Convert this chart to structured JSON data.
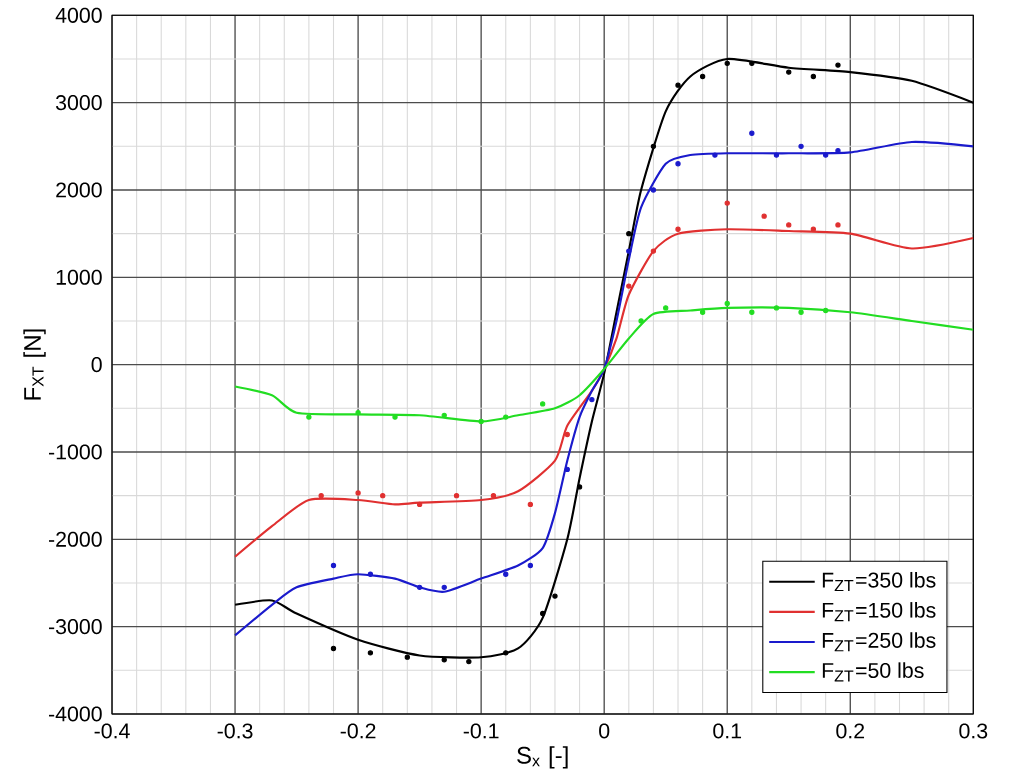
{
  "chart_data": {
    "type": "line",
    "xlabel": "S$_{x}$ [-]",
    "ylabel": "F$_{XT}$ [N]",
    "xlim": [
      -0.4,
      0.3
    ],
    "ylim": [
      -4000,
      4000
    ],
    "xticks": [
      -0.4,
      -0.3,
      -0.2,
      -0.1,
      0,
      0.1,
      0.2,
      0.3
    ],
    "yticks": [
      -4000,
      -3000,
      -2000,
      -1000,
      0,
      1000,
      2000,
      3000,
      4000
    ],
    "grid": true,
    "legend": "bottom right",
    "series": [
      {
        "name": "F$_{ZT}$=350 lbs",
        "color": "#000000",
        "x": [
          -0.3,
          -0.27,
          -0.25,
          -0.2,
          -0.15,
          -0.1,
          -0.07,
          -0.05,
          -0.03,
          -0.02,
          -0.01,
          0,
          0.01,
          0.02,
          0.03,
          0.05,
          0.07,
          0.1,
          0.15,
          0.2,
          0.25,
          0.3
        ],
        "values": [
          -2750,
          -2700,
          -2850,
          -3150,
          -3330,
          -3350,
          -3250,
          -2900,
          -2000,
          -1300,
          -650,
          -100,
          600,
          1300,
          2000,
          2900,
          3300,
          3500,
          3400,
          3350,
          3250,
          3000
        ]
      },
      {
        "name": "F$_{ZT}$=150 lbs",
        "color": "#e03030",
        "x": [
          -0.3,
          -0.27,
          -0.24,
          -0.2,
          -0.17,
          -0.15,
          -0.1,
          -0.07,
          -0.04,
          -0.03,
          -0.01,
          0,
          0.01,
          0.02,
          0.04,
          0.06,
          0.1,
          0.15,
          0.2,
          0.25,
          0.3
        ],
        "values": [
          -2200,
          -1850,
          -1550,
          -1550,
          -1600,
          -1580,
          -1550,
          -1450,
          -1100,
          -700,
          -300,
          -50,
          300,
          800,
          1300,
          1500,
          1550,
          1530,
          1500,
          1330,
          1450
        ]
      },
      {
        "name": "F$_{ZT}$=250 lbs",
        "color": "#1a1acc",
        "x": [
          -0.3,
          -0.27,
          -0.25,
          -0.22,
          -0.2,
          -0.17,
          -0.15,
          -0.13,
          -0.1,
          -0.07,
          -0.05,
          -0.04,
          -0.03,
          -0.02,
          -0.01,
          0,
          0.01,
          0.02,
          0.03,
          0.05,
          0.07,
          0.1,
          0.15,
          0.2,
          0.25,
          0.3
        ],
        "values": [
          -3100,
          -2750,
          -2550,
          -2450,
          -2400,
          -2450,
          -2550,
          -2600,
          -2450,
          -2300,
          -2100,
          -1700,
          -1100,
          -600,
          -300,
          -50,
          500,
          1200,
          1800,
          2300,
          2400,
          2420,
          2420,
          2430,
          2550,
          2500
        ]
      },
      {
        "name": "F$_{ZT}$=50 lbs",
        "color": "#22dd22",
        "x": [
          -0.3,
          -0.27,
          -0.25,
          -0.2,
          -0.15,
          -0.1,
          -0.07,
          -0.04,
          -0.02,
          0,
          0.02,
          0.04,
          0.07,
          0.1,
          0.15,
          0.2,
          0.25,
          0.3
        ],
        "values": [
          -250,
          -350,
          -550,
          -570,
          -580,
          -650,
          -580,
          -500,
          -350,
          -50,
          300,
          580,
          620,
          650,
          650,
          600,
          500,
          400
        ]
      },
      {
        "type": "scatter",
        "marker": "circle",
        "color": "#000000",
        "x": [
          -0.22,
          -0.19,
          -0.16,
          -0.13,
          -0.11,
          -0.08,
          -0.05,
          -0.04,
          -0.02,
          0.02,
          0.04,
          0.06,
          0.08,
          0.1,
          0.12,
          0.15,
          0.17,
          0.19
        ],
        "values": [
          -3250,
          -3300,
          -3350,
          -3380,
          -3400,
          -3300,
          -2850,
          -2650,
          -1400,
          1500,
          2500,
          3200,
          3300,
          3450,
          3450,
          3350,
          3300,
          3430
        ]
      },
      {
        "type": "scatter",
        "marker": "circle",
        "color": "#e03030",
        "x": [
          -0.23,
          -0.2,
          -0.18,
          -0.15,
          -0.12,
          -0.09,
          -0.06,
          -0.03,
          0.02,
          0.04,
          0.06,
          0.1,
          0.13,
          0.15,
          0.17,
          0.19
        ],
        "values": [
          -1500,
          -1470,
          -1500,
          -1600,
          -1500,
          -1500,
          -1600,
          -800,
          900,
          1300,
          1550,
          1850,
          1700,
          1600,
          1550,
          1600
        ]
      },
      {
        "type": "scatter",
        "marker": "circle",
        "color": "#1a1acc",
        "x": [
          -0.22,
          -0.19,
          -0.15,
          -0.13,
          -0.08,
          -0.06,
          -0.03,
          -0.01,
          0.02,
          0.04,
          0.06,
          0.09,
          0.12,
          0.14,
          0.16,
          0.18,
          0.19
        ],
        "values": [
          -2300,
          -2400,
          -2550,
          -2550,
          -2400,
          -2300,
          -1200,
          -400,
          1300,
          2000,
          2300,
          2400,
          2650,
          2400,
          2500,
          2400,
          2450
        ]
      },
      {
        "type": "scatter",
        "marker": "circle",
        "color": "#22dd22",
        "x": [
          -0.24,
          -0.2,
          -0.17,
          -0.13,
          -0.1,
          -0.08,
          -0.05,
          0.03,
          0.05,
          0.08,
          0.1,
          0.12,
          0.14,
          0.16,
          0.18
        ],
        "values": [
          -600,
          -550,
          -600,
          -580,
          -650,
          -600,
          -450,
          500,
          650,
          600,
          700,
          600,
          650,
          600,
          620
        ]
      }
    ]
  }
}
